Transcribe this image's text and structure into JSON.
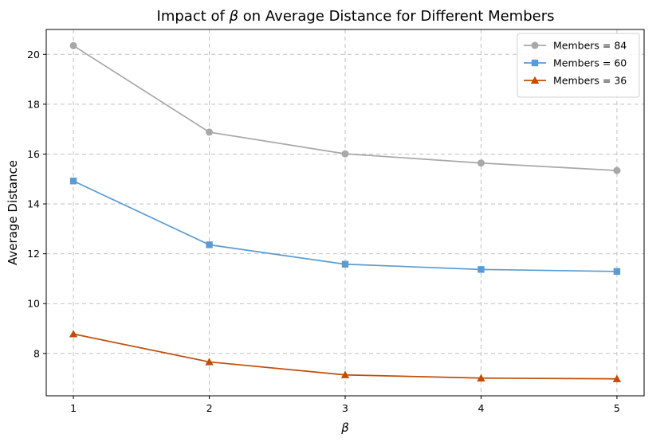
{
  "chart_data": {
    "type": "line",
    "title": "Impact of β on Average Distance for Different Members",
    "xlabel": "β",
    "ylabel": "Average Distance",
    "x": [
      1,
      2,
      3,
      4,
      5
    ],
    "xlim": [
      0.8,
      5.2
    ],
    "ylim": [
      6.3,
      21.0
    ],
    "yticks": [
      8,
      10,
      12,
      14,
      16,
      18,
      20
    ],
    "grid": true,
    "legend_position": "top-right",
    "series": [
      {
        "name": "Members = 84",
        "values": [
          20.35,
          16.88,
          16.01,
          15.64,
          15.34
        ],
        "color": "#a8a8a8",
        "marker": "circle"
      },
      {
        "name": "Members = 60",
        "values": [
          14.92,
          12.36,
          11.58,
          11.37,
          11.29
        ],
        "color": "#5b9bd1",
        "marker": "square"
      },
      {
        "name": "Members = 36",
        "values": [
          8.78,
          7.66,
          7.14,
          7.01,
          6.98
        ],
        "color": "#c04e0a",
        "marker": "triangle"
      }
    ]
  }
}
